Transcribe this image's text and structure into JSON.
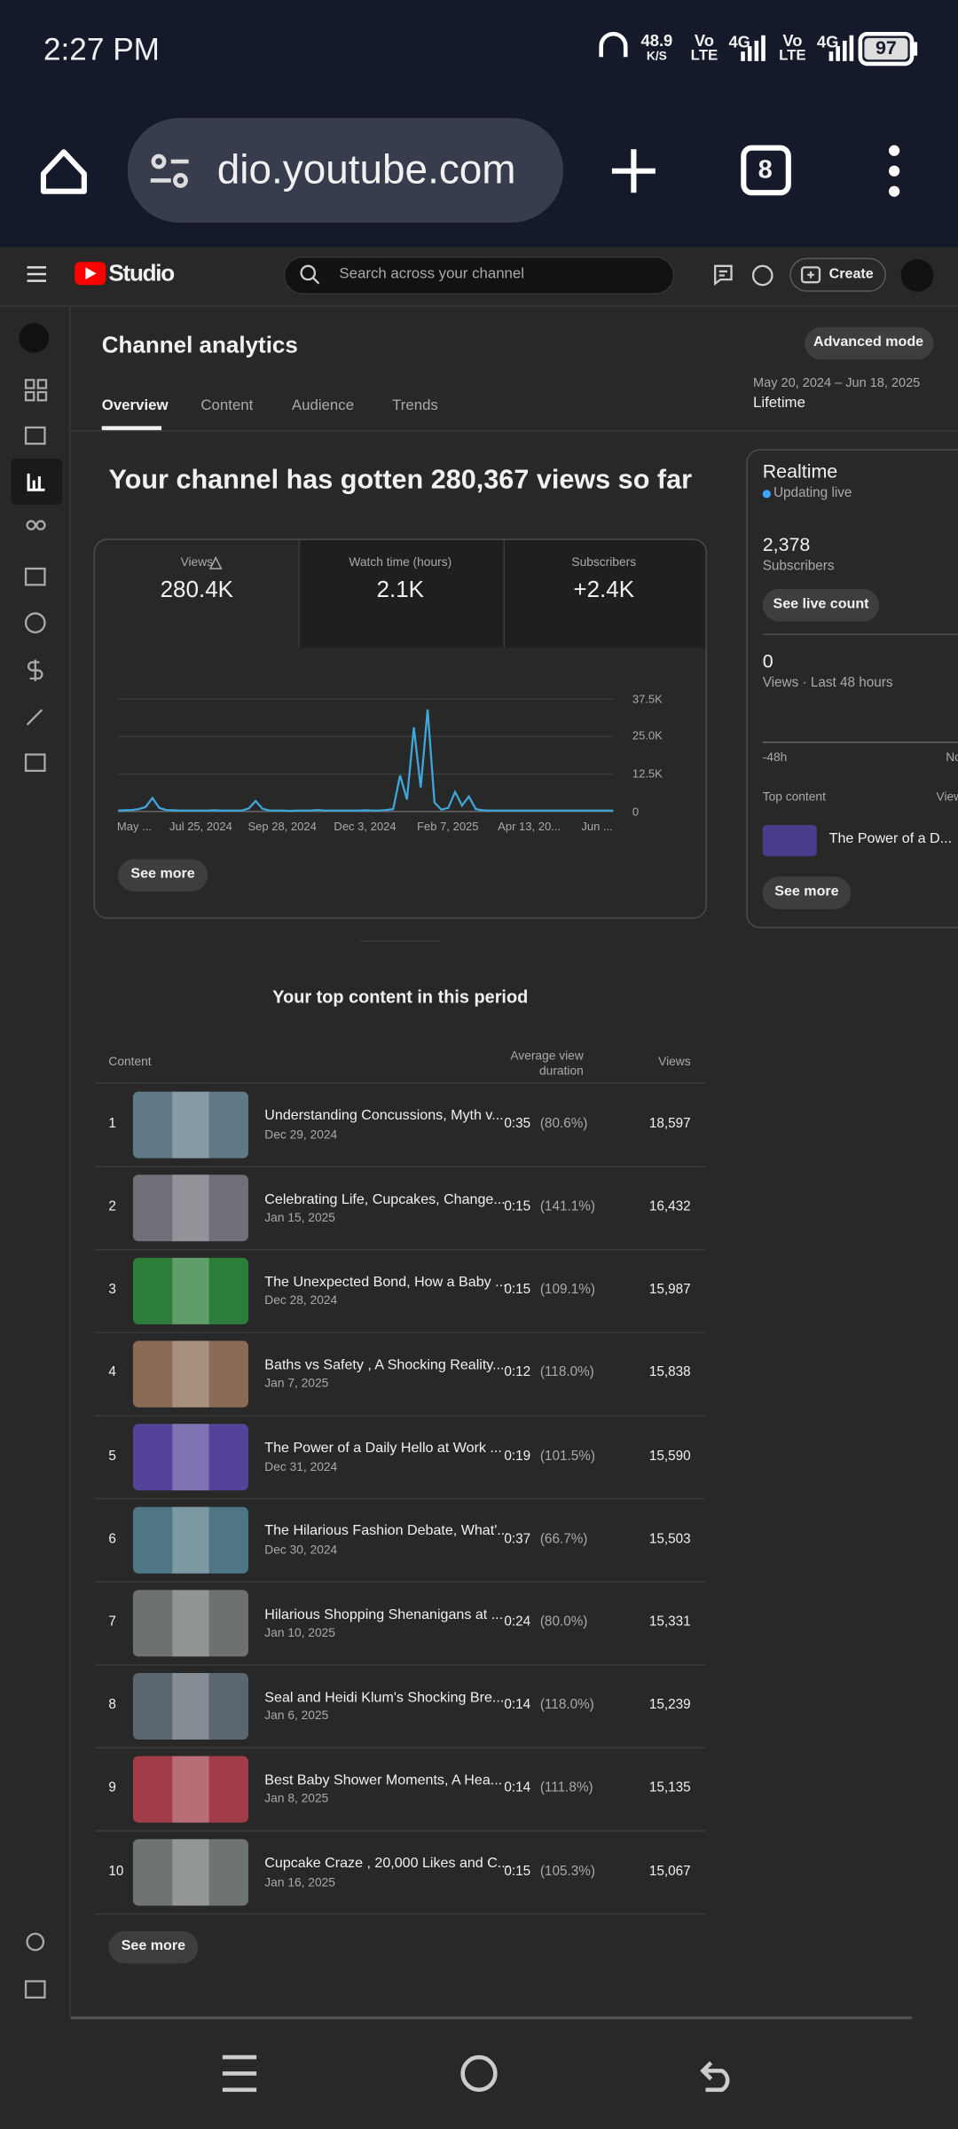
{
  "status_bar": {
    "time": "2:27 PM",
    "net_speed": "48.9",
    "net_unit": "K/S",
    "sims": [
      {
        "vo": "Vo",
        "lte": "LTE",
        "net": "4G"
      },
      {
        "vo": "Vo",
        "lte": "LTE",
        "net": "4G"
      }
    ],
    "battery": "97"
  },
  "browser": {
    "url": "dio.youtube.com",
    "tabs": "8"
  },
  "header": {
    "logo": "Studio",
    "search_placeholder": "Search across your channel",
    "create": "Create"
  },
  "analytics": {
    "title": "Channel analytics",
    "advanced_mode": "Advanced mode",
    "tabs": [
      "Overview",
      "Content",
      "Audience",
      "Trends"
    ],
    "date_range": "May 20, 2024 – Jun 18, 2025",
    "period": "Lifetime",
    "headline": "Your channel has gotten 280,367 views so far",
    "metrics": [
      {
        "label": "Views",
        "value": "280.4K"
      },
      {
        "label": "Watch time (hours)",
        "value": "2.1K"
      },
      {
        "label": "Subscribers",
        "value": "+2.4K"
      }
    ],
    "chart": {
      "type": "line",
      "color": "#3ea6d8",
      "x_labels": [
        "May ...",
        "Jul 25, 2024",
        "Sep 28, 2024",
        "Dec 3, 2024",
        "Feb 7, 2025",
        "Apr 13, 20...",
        "Jun ..."
      ],
      "ylim": [
        0,
        37500
      ],
      "yticks": [
        {
          "value": 0,
          "label": "0"
        },
        {
          "value": 12500,
          "label": "12.5K"
        },
        {
          "value": 25000,
          "label": "25.0K"
        },
        {
          "value": 37500,
          "label": "37.5K"
        }
      ],
      "grid": true,
      "values": [
        300,
        400,
        500,
        800,
        1500,
        4500,
        1200,
        500,
        400,
        300,
        300,
        300,
        300,
        300,
        400,
        300,
        300,
        300,
        300,
        1000,
        3500,
        900,
        300,
        300,
        300,
        200,
        300,
        300,
        300,
        500,
        300,
        300,
        300,
        300,
        300,
        300,
        400,
        300,
        300,
        500,
        800,
        12000,
        4000,
        28000,
        8000,
        34000,
        3000,
        600,
        1200,
        6500,
        2000,
        5000,
        800,
        400,
        300,
        300,
        300,
        300,
        300,
        300,
        300,
        300,
        300,
        300,
        300,
        300,
        300,
        300,
        300,
        300,
        300,
        300,
        300
      ]
    },
    "see_more": "See more"
  },
  "top_content": {
    "title": "Your top content in this period",
    "columns": {
      "content": "Content",
      "avg_duration": "Average view duration",
      "views": "Views"
    },
    "rows": [
      {
        "rank": "1",
        "title": "Understanding Concussions, Myth v...",
        "date": "Dec 29, 2024",
        "duration": "0:35",
        "percent": "(80.6%)",
        "views": "18,597"
      },
      {
        "rank": "2",
        "title": "Celebrating Life, Cupcakes, Change...",
        "date": "Jan 15, 2025",
        "duration": "0:15",
        "percent": "(141.1%)",
        "views": "16,432"
      },
      {
        "rank": "3",
        "title": "The Unexpected Bond, How a Baby ...",
        "date": "Dec 28, 2024",
        "duration": "0:15",
        "percent": "(109.1%)",
        "views": "15,987"
      },
      {
        "rank": "4",
        "title": "Baths vs Safety , A Shocking Reality...",
        "date": "Jan 7, 2025",
        "duration": "0:12",
        "percent": "(118.0%)",
        "views": "15,838"
      },
      {
        "rank": "5",
        "title": "The Power of a Daily Hello at Work ...",
        "date": "Dec 31, 2024",
        "duration": "0:19",
        "percent": "(101.5%)",
        "views": "15,590"
      },
      {
        "rank": "6",
        "title": "The Hilarious Fashion Debate, What'...",
        "date": "Dec 30, 2024",
        "duration": "0:37",
        "percent": "(66.7%)",
        "views": "15,503"
      },
      {
        "rank": "7",
        "title": "Hilarious Shopping Shenanigans at ...",
        "date": "Jan 10, 2025",
        "duration": "0:24",
        "percent": "(80.0%)",
        "views": "15,331"
      },
      {
        "rank": "8",
        "title": "Seal and Heidi Klum's Shocking Bre...",
        "date": "Jan 6, 2025",
        "duration": "0:14",
        "percent": "(118.0%)",
        "views": "15,239"
      },
      {
        "rank": "9",
        "title": "Best Baby Shower Moments, A Hea...",
        "date": "Jan 8, 2025",
        "duration": "0:14",
        "percent": "(111.8%)",
        "views": "15,135"
      },
      {
        "rank": "10",
        "title": "Cupcake Craze , 20,000 Likes and C...",
        "date": "Jan 16, 2025",
        "duration": "0:15",
        "percent": "(105.3%)",
        "views": "15,067"
      }
    ],
    "see_more": "See more"
  },
  "realtime": {
    "title": "Realtime",
    "status": "Updating live",
    "subscribers": "2,378",
    "subscribers_label": "Subscribers",
    "live_count": "See live count",
    "views": "0",
    "views_label": "Views · Last 48 hours",
    "axis_start": "-48h",
    "axis_end": "Now",
    "top_content": "Top content",
    "top_views": "Views",
    "top_item": "The Power of a D...",
    "see_more": "See more"
  }
}
